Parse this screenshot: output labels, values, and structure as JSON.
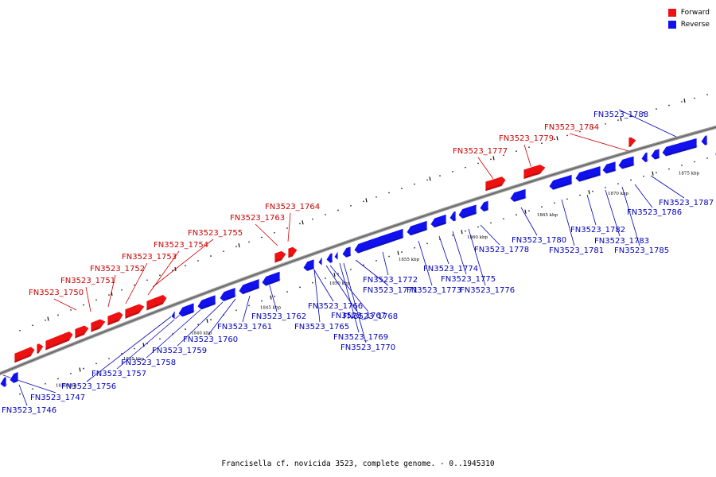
{
  "caption": "Francisella cf. novicida 3523, complete genome. - 0..1945310",
  "legend": {
    "forward_label": "Forward",
    "reverse_label": "Reverse",
    "forward_color": "#ee1111",
    "reverse_color": "#1111ee"
  },
  "colors": {
    "forward_text": "#cc0000",
    "reverse_text": "#0000bb",
    "backbone": "#888888"
  },
  "scale_labels": [
    "1830 kbp",
    "1835 kbp",
    "1840 kbp",
    "1845 kbp",
    "1850 kbp",
    "1855 kbp",
    "1860 kbp",
    "1865 kbp",
    "1870 kbp",
    "1875 kbp"
  ],
  "forward_genes": [
    "FN3523_1750",
    "FN3523_1751",
    "FN3523_1752",
    "FN3523_1753",
    "FN3523_1754",
    "FN3523_1755",
    "FN3523_1763",
    "FN3523_1764",
    "FN3523_1777",
    "FN3523_1779",
    "FN3523_1784"
  ],
  "reverse_genes": [
    "FN3523_1746",
    "FN3523_1747",
    "FN3523_1756",
    "FN3523_1757",
    "FN3523_1758",
    "FN3523_1759",
    "FN3523_1760",
    "FN3523_1761",
    "FN3523_1762",
    "FN3523_1765",
    "FN3523_1766",
    "FN3523_1767",
    "FN3523_1768",
    "FN3523_1769",
    "FN3523_1770",
    "FN3523_1771",
    "FN3523_1772",
    "FN3523_1773",
    "FN3523_1774",
    "FN3523_1775",
    "FN3523_1776",
    "FN3523_1778",
    "FN3523_1780",
    "FN3523_1781",
    "FN3523_1782",
    "FN3523_1783",
    "FN3523_1785",
    "FN3523_1786",
    "FN3523_1787",
    "FN3523_1788"
  ]
}
